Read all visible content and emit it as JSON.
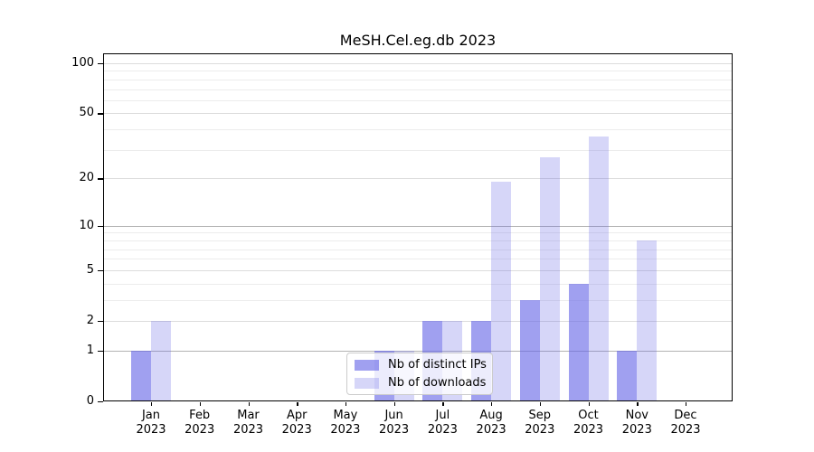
{
  "chart_data": {
    "type": "bar",
    "title": "MeSH.Cel.eg.db 2023",
    "x_tick_year": "2023",
    "categories": [
      "Jan",
      "Feb",
      "Mar",
      "Apr",
      "May",
      "Jun",
      "Jul",
      "Aug",
      "Sep",
      "Oct",
      "Nov",
      "Dec"
    ],
    "series": [
      {
        "name": "Nb of distinct IPs",
        "values": [
          1,
          0,
          0,
          0,
          0,
          1,
          2,
          2,
          3,
          4,
          1,
          0
        ],
        "color": "rgba(102,102,230,0.62)"
      },
      {
        "name": "Nb of downloads",
        "values": [
          2,
          0,
          0,
          0,
          0,
          1,
          2,
          19,
          27,
          36,
          8,
          0
        ],
        "color": "rgba(102,102,230,0.27)"
      }
    ],
    "yscale": "log10(1+x)",
    "y_ticks": [
      0,
      1,
      2,
      5,
      10,
      20,
      50,
      100
    ],
    "y_minor_gridlines": [
      3,
      4,
      6,
      7,
      8,
      9,
      30,
      40,
      60,
      70,
      80,
      90
    ],
    "y_emphasized_gridlines": [
      1,
      10
    ],
    "ylim": [
      0,
      113
    ],
    "grid": true,
    "legend_position": "inside lower center-left"
  },
  "colors": {
    "bar_distinct_ips": "#a3a3f0",
    "bar_downloads": "#d6d6f7",
    "grid_minor": "#ececec",
    "grid_labeled": "#dcdcdc",
    "grid_emphasized": "#b3b3b3",
    "axis": "#000000",
    "legend_border": "#cccccc"
  }
}
